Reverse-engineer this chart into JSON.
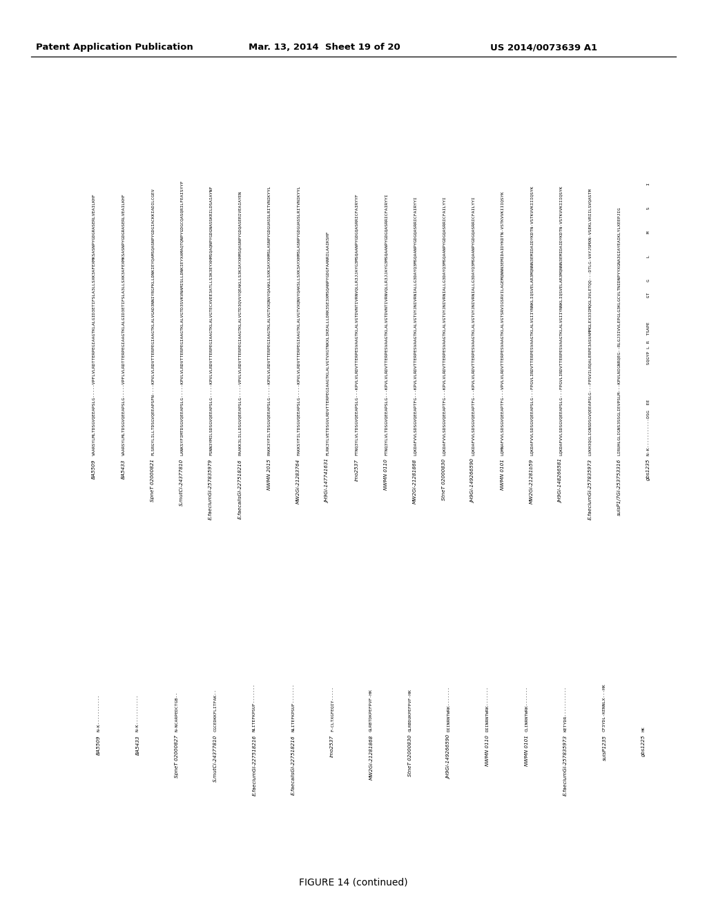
{
  "header_left": "Patent Application Publication",
  "header_center": "Mar. 13, 2014  Sheet 19 of 20",
  "header_right": "US 2014/0073639 A1",
  "figure_caption": "FIGURE 14 (continued)",
  "background_color": "#ffffff",
  "top_block": [
    {
      "id": "BA5509",
      "seq": "VAARSYLMLTDSGVQEEAPSLG-----VPFLVLRDTTERPEGIAAGTKLALGID3ETIFSLA3LLSXK3AFEXMKSASNPYGDGRASERLVEAILKHF"
    },
    {
      "id": "BA5433",
      "seq": "VAARSYLMLTDSGVQEEAPSLG-----VPFLVLRDTTERPEGIAAGTKLALGID3ETIFSLA3LLSXK3AFEXMKSASNPYGDGRASERLVEAILKHF"
    },
    {
      "id": "SpneT 02000821",
      "seq": "FLSRGYLILLTDSGVQEEAPSFN----KPVLVLRDVTTERPEGIAAGTKLALVGAD3NNIYRGFKLLDNKIEYQAMSQASNPYGDGIACKKIADILCGEV"
    },
    {
      "id": "S.mutCi-24377810",
      "seq": "LANKSYFIMTDSGVQEEAPSLG-----KPVLVLRDVTTERPEGIAAGTKLALVGTD3SVKVNAMISLLDNKIEYXAMAQTQNPYGDGCQASQRILFEAISYYF"
    },
    {
      "id": "E.faeciumGI-257835979",
      "seq": "FSNN3YMILSDSGVQEEAPSLG-----KPVLVLRDVTTERPEGIAAGTKLALVGTECXVEE3ATLLS3K3EYXHMSQAQNPYGDGNASSKRILDSAIAYNF"
    },
    {
      "id": "E.faecalisGI-227518216",
      "seq": "PAAKK3LILLDSGVQEEAPSLG-----VPVLVLRDVTTERPEGIAAGTKLALVGTD3QVVYQEAKLLS3K3AYXHMSQASNPYGDQASERIVEAIAYEN"
    },
    {
      "id": "NWMN 2015",
      "seq": "PAKK3YFILTDSGVQEEAPSLG-----KPVLVLRDVTTERPEGIAAGTKLALVGTVXQNVYQAAKLLSXK3AYXHMSLASNPYGDGUASSLRITVNIKYYL"
    },
    {
      "id": "MW2Gi-21283764",
      "seq": "FAKKSYFILTDSGVQEEAPSLG-----KPVLVLRDVTTERPEGIAAGTKLALVGTVXQNVYQAKSLLSXK3AYXHMSLASNPYGDGUASSLRITVNIKYYL"
    },
    {
      "id": "JH9Gi-147741631",
      "seq": "FLRK3YLVETDSGVLRDVTTERPEGIAAGTKLALVGTVXGTNKXLIKEALLLDRK3SE3XMSQANPYGDGFAANRILAAIKSHF"
    },
    {
      "id": "imo2537",
      "seq": "FTNQ3YLVLTDSGVQEEAPSLG---KPVLVLRDVTTERPESVAAGTKLALVGTDVNTIVRNVQLLR3JJAYG3MSQAANPYGDGQASRRICFAIRYYF"
    },
    {
      "id": "NWMN 0110",
      "seq": "FTNQ3YLVLTDSGVQEEAPSLG---KPVLVLRDVTTERPESVAAGTKLALVGTDVNTIVRNVQLLR3JJAYG3MSQAANPYGDGQASRRICFAIRYYI"
    },
    {
      "id": "MW2Gi-21281868",
      "seq": "LQKDAFVVLSDSGVQEEAPTFG---KPVLVLRDVTTERPESVAAGTKLALVGTUYJNIVRNIALLG3DAYQ3MSQAANPYGDGQASRRICFAIRYYI"
    },
    {
      "id": "StneT 02000830",
      "seq": "LQKDAFVVLSDSGVQEEAPTFG---KPVLVLRDVTTERPESVAAGTKLALVGTUYJNIVRNIALLG3DAYQ3MSQAANPYGDGQASRRICFAILYYI"
    },
    {
      "id": "JH9Gi-149266590",
      "seq": "LQKDAFVVLSDSGVQEEAPTFG---KPVLVLRDVTTERPESVAAGTKLALVGTUYJNIVRNIALLG3DAYQ3MSQAANPYGDGQASRRICFAILYYI"
    },
    {
      "id": "NWMN 0101",
      "seq": "LQMNAFVVLSDSGVQEEAPTFG---VPVLVLRDVTTERPESVAAGTKLALVGTSRVIGSRVILAGEMQNNN3EMIDAIDYKDTN-VSTKVVKIIIQSYK"
    },
    {
      "id": "MW2Gi-21281b59",
      "seq": "LQKDAFVVLSDSGVQEEAPSLG---FPGVLIRDVTTERPESVAAGTKLALVGIIYNNKLIQSVELAR3MQNNN3EMIDAIDYKDTN-VSTKVVKIIIQSYK"
    },
    {
      "id": "JH9Gi-148266581",
      "seq": "LQKDAFVVLSDSGVQEEAPSLG---FPGVLIRDVTTERPESVAAGTKLALVGIIYNNKLIQSVELAR3MQNNN3EMIDAIDYKDTN-VSTKVVKIIIQSYK"
    },
    {
      "id": "E.faeciumGI-257835973",
      "seq": "LVKH3QGLIGNSDSGVQEEAPSLG---FPSVILRQALERPE3ASVAMMGLEX33IMQGL3VLETQQ---DTLG-VAYJSMXN-VSEKLVRIILSVQASTM"
    },
    {
      "id": "suisP1/7GI-253753316",
      "seq": "LIRUHLGLIGNS3SSGLIEVPSLM---KPVLNIGNRQEG--RLGJ3IVVLEPGLG3KLGCVLTNIDNPYYXGNA3GIAYEAIKLYLXEEPJIG"
    },
    {
      "id": "gbs1235",
      "seq": "N-K-----------DSG  EE             SQGYP L R  TSAPE         GT    G        L        M        S        I"
    }
  ],
  "bottom_block": [
    {
      "id": "BA5509",
      "seq": "N-K-----------"
    },
    {
      "id": "BA5433",
      "seq": "N-K-----------"
    },
    {
      "id": "SpneT 02000827",
      "seq": "N-NCARPEDCTGB--"
    },
    {
      "id": "S.mutCi-24377810",
      "seq": "CGCEDKKFLITFAK--"
    },
    {
      "id": "E.faeciumGI-227518216",
      "seq": "NLITEFKPSUF-------"
    },
    {
      "id": "E.faecalisGI-227518216",
      "seq": "NLITEFKPSUF-------"
    },
    {
      "id": "imo2537",
      "seq": "F-CLTXGFEQIY-----"
    },
    {
      "id": "MW2Gi-21281868",
      "seq": "GLRBTDKPEFPVF-HK"
    },
    {
      "id": "StneT 02000830",
      "seq": "GLRBDUKPEFPVF-HK"
    },
    {
      "id": "JH9Gi-149266590",
      "seq": "DIINRNTWRK-------"
    },
    {
      "id": "NWMN 0110",
      "seq": "DIINRNTWRK-------"
    },
    {
      "id": "NWMN 0101",
      "seq": "CLINRNTWRK-------"
    },
    {
      "id": "E.faeciumGI-257835973",
      "seq": "KETYDR-----------"
    },
    {
      "id": "suisP1235",
      "seq": "CF3YDL-KENNLX---HK"
    },
    {
      "id": "gbs1225",
      "seq": "HK"
    }
  ]
}
